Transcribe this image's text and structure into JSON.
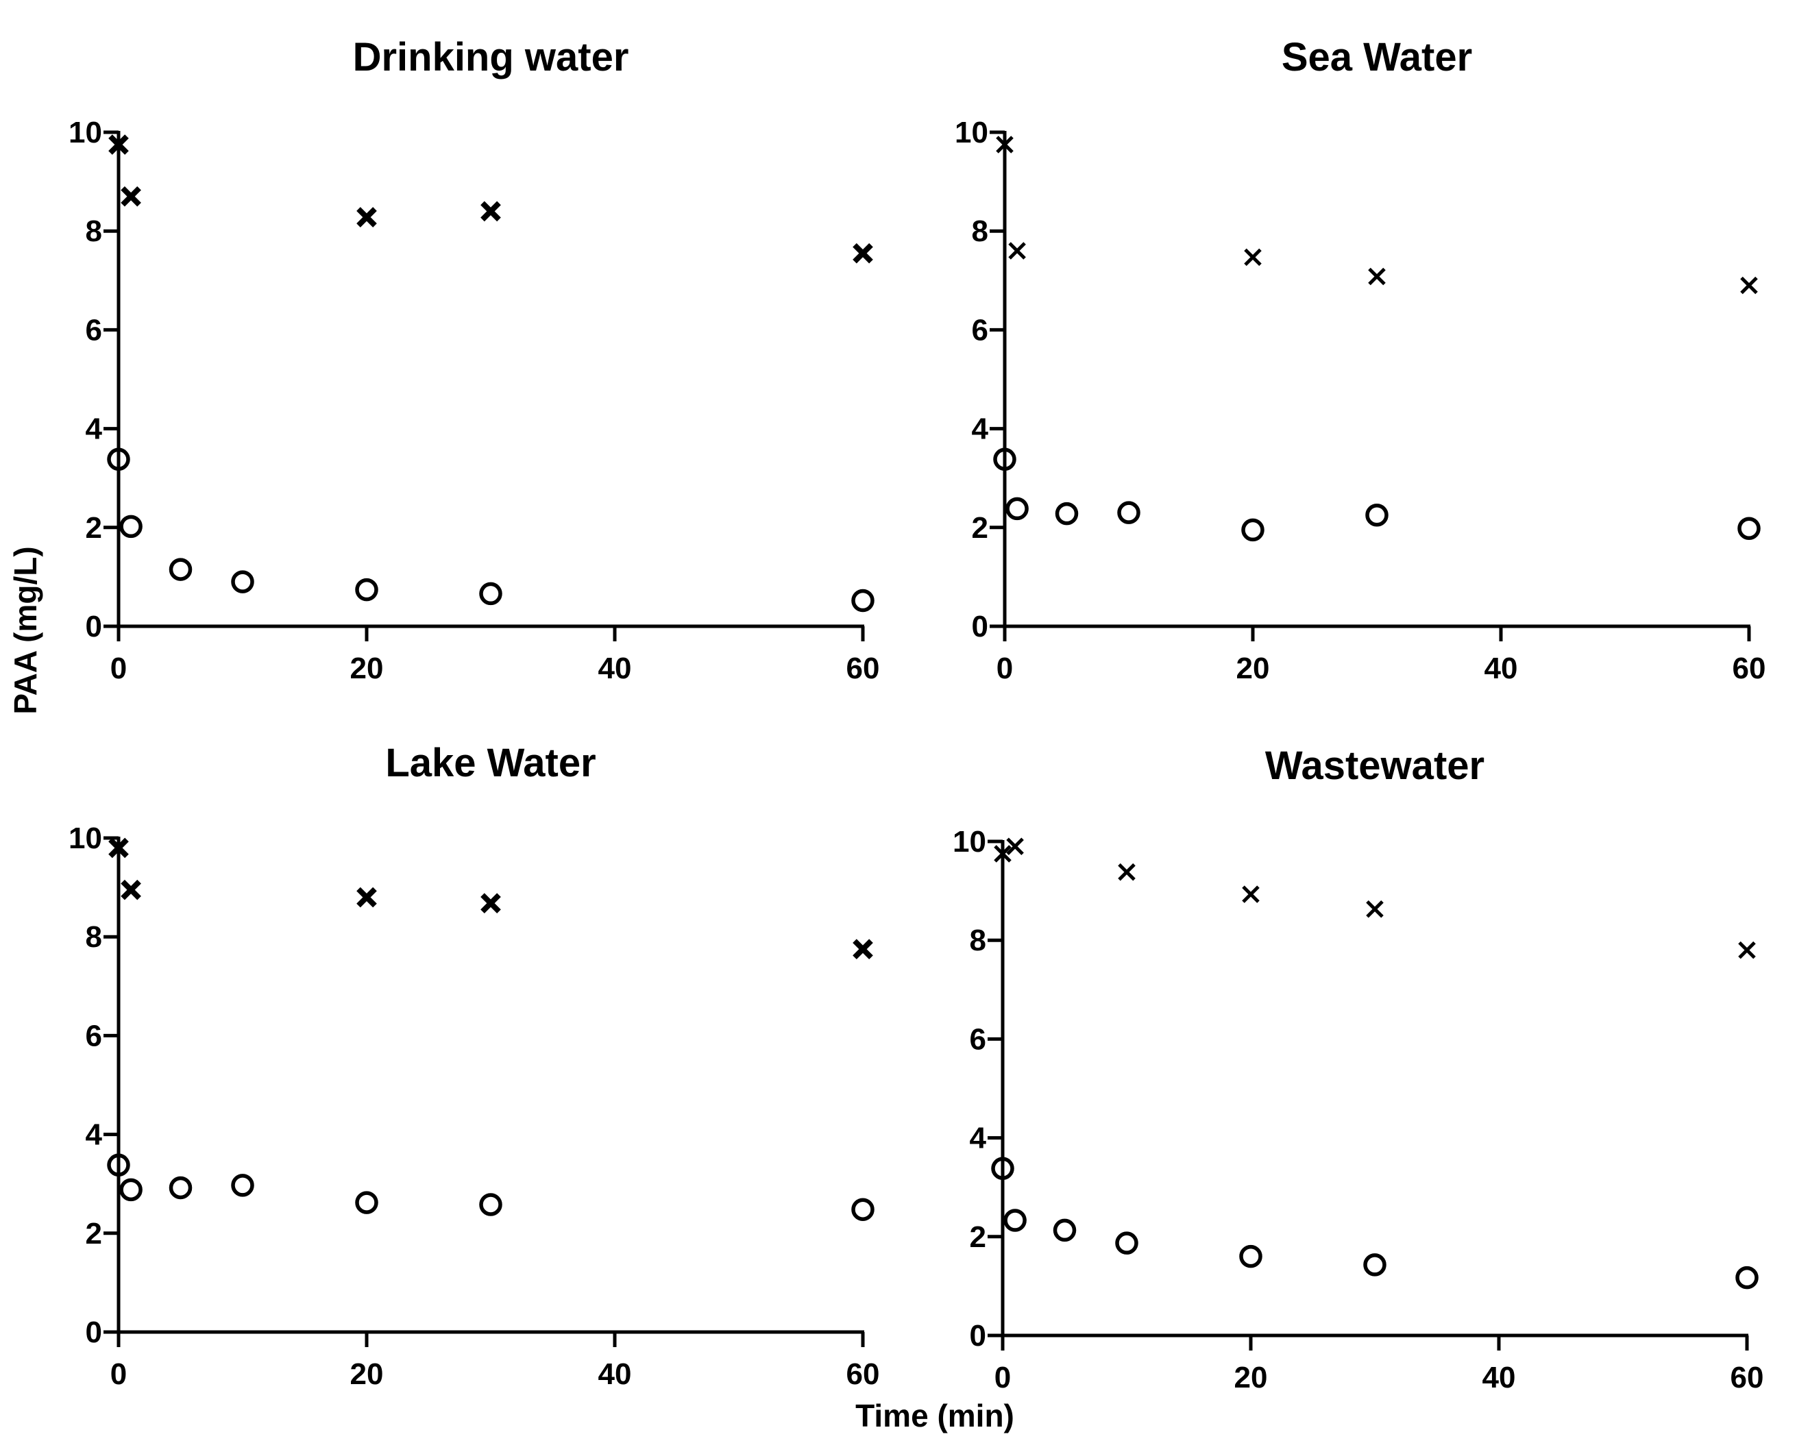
{
  "figure": {
    "ylabel": "PAA (mg/L)",
    "xlabel": "Time (min)"
  },
  "chart_data": [
    {
      "type": "scatter",
      "title": "Drinking water",
      "xlabel": "Time (min)",
      "ylabel": "PAA (mg/L)",
      "xlim": [
        0,
        60
      ],
      "ylim": [
        0,
        10
      ],
      "xticks": [
        0,
        20,
        40,
        60
      ],
      "yticks": [
        0,
        2,
        4,
        6,
        8,
        10
      ],
      "grid": false,
      "series": [
        {
          "name": "x markers",
          "marker": "x",
          "heavy": true,
          "x": [
            0,
            1,
            20,
            30,
            60
          ],
          "y": [
            9.75,
            8.7,
            8.28,
            8.4,
            7.55
          ]
        },
        {
          "name": "circle markers",
          "marker": "circle",
          "x": [
            0,
            1,
            5,
            10,
            20,
            30,
            60
          ],
          "y": [
            3.38,
            2.02,
            1.15,
            0.9,
            0.74,
            0.66,
            0.52
          ]
        }
      ]
    },
    {
      "type": "scatter",
      "title": "Sea Water",
      "xlabel": "Time (min)",
      "ylabel": "PAA (mg/L)",
      "xlim": [
        0,
        60
      ],
      "ylim": [
        0,
        10
      ],
      "xticks": [
        0,
        20,
        40,
        60
      ],
      "yticks": [
        0,
        2,
        4,
        6,
        8,
        10
      ],
      "grid": false,
      "series": [
        {
          "name": "x markers",
          "marker": "x",
          "heavy": false,
          "x": [
            0,
            1,
            20,
            30,
            60
          ],
          "y": [
            9.75,
            7.6,
            7.47,
            7.08,
            6.9
          ]
        },
        {
          "name": "circle markers",
          "marker": "circle",
          "x": [
            0,
            1,
            5,
            10,
            20,
            30,
            60
          ],
          "y": [
            3.38,
            2.38,
            2.28,
            2.3,
            1.95,
            2.25,
            1.98
          ]
        }
      ]
    },
    {
      "type": "scatter",
      "title": "Lake Water",
      "xlabel": "Time (min)",
      "ylabel": "PAA (mg/L)",
      "xlim": [
        0,
        60
      ],
      "ylim": [
        0,
        10
      ],
      "xticks": [
        0,
        20,
        40,
        60
      ],
      "yticks": [
        0,
        2,
        4,
        6,
        8,
        10
      ],
      "grid": false,
      "series": [
        {
          "name": "x markers",
          "marker": "x",
          "heavy": true,
          "x": [
            0,
            1,
            20,
            30,
            60
          ],
          "y": [
            9.8,
            8.95,
            8.8,
            8.68,
            7.75
          ]
        },
        {
          "name": "circle markers",
          "marker": "circle",
          "x": [
            0,
            1,
            5,
            10,
            20,
            30,
            60
          ],
          "y": [
            3.38,
            2.88,
            2.92,
            2.97,
            2.62,
            2.58,
            2.48
          ]
        }
      ]
    },
    {
      "type": "scatter",
      "title": "Wastewater",
      "xlabel": "Time (min)",
      "ylabel": "PAA (mg/L)",
      "xlim": [
        0,
        60
      ],
      "ylim": [
        0,
        10
      ],
      "xticks": [
        0,
        20,
        40,
        60
      ],
      "yticks": [
        0,
        2,
        4,
        6,
        8,
        10
      ],
      "grid": false,
      "series": [
        {
          "name": "x markers",
          "marker": "x",
          "heavy": false,
          "x": [
            0,
            1,
            10,
            20,
            30,
            60
          ],
          "y": [
            9.75,
            9.9,
            9.38,
            8.93,
            8.63,
            7.8
          ]
        },
        {
          "name": "circle markers",
          "marker": "circle",
          "x": [
            0,
            1,
            5,
            10,
            20,
            30,
            60
          ],
          "y": [
            3.38,
            2.33,
            2.13,
            1.87,
            1.6,
            1.43,
            1.17
          ]
        }
      ]
    }
  ]
}
